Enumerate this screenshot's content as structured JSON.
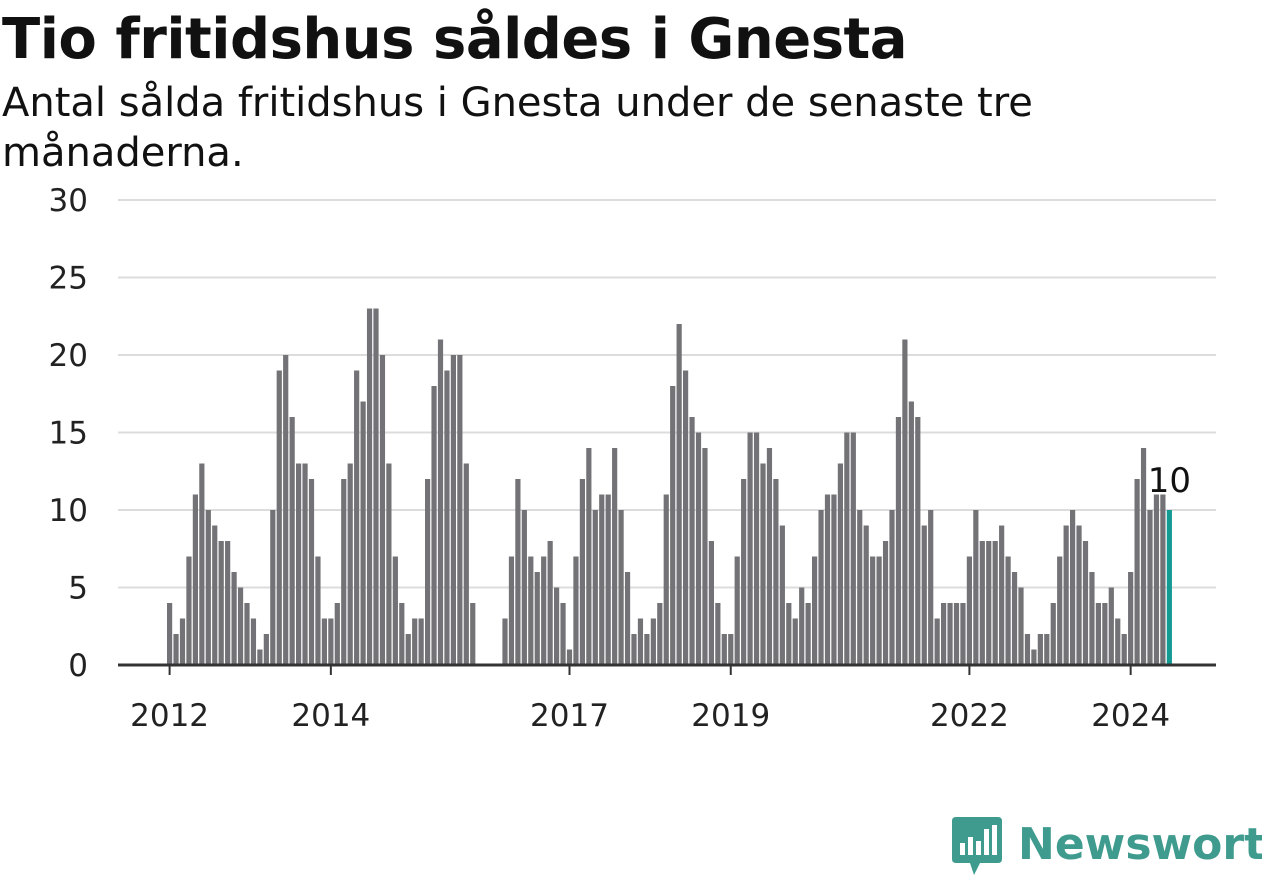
{
  "chart_data": {
    "type": "bar",
    "title": "Tio fritidshus såldes i Gnesta",
    "subtitle": "Antal sålda fritidshus i Gnesta under de senaste tre månaderna.",
    "xlabel": "",
    "ylabel": "",
    "ylim": [
      0,
      30
    ],
    "yticks": [
      0,
      5,
      10,
      15,
      20,
      25,
      30
    ],
    "xtick_labels": [
      {
        "label": "2012",
        "index": 0
      },
      {
        "label": "2014",
        "index": 25
      },
      {
        "label": "2017",
        "index": 62
      },
      {
        "label": "2019",
        "index": 87
      },
      {
        "label": "2022",
        "index": 124
      },
      {
        "label": "2024",
        "index": 149
      }
    ],
    "grid": true,
    "highlight_color": "#139b93",
    "bar_color": "#737276",
    "last_value_label": "10",
    "values": [
      4,
      2,
      3,
      7,
      11,
      13,
      10,
      9,
      8,
      8,
      6,
      5,
      4,
      3,
      1,
      2,
      10,
      19,
      20,
      16,
      13,
      13,
      12,
      7,
      3,
      3,
      4,
      12,
      13,
      19,
      17,
      23,
      23,
      20,
      13,
      7,
      4,
      2,
      3,
      3,
      12,
      18,
      21,
      19,
      20,
      20,
      13,
      4,
      0,
      0,
      0,
      0,
      3,
      7,
      12,
      10,
      7,
      6,
      7,
      8,
      5,
      4,
      1,
      7,
      12,
      14,
      10,
      11,
      11,
      14,
      10,
      6,
      2,
      3,
      2,
      3,
      4,
      11,
      18,
      22,
      19,
      16,
      15,
      14,
      8,
      4,
      2,
      2,
      7,
      12,
      15,
      15,
      13,
      14,
      12,
      9,
      4,
      3,
      5,
      4,
      7,
      10,
      11,
      11,
      13,
      15,
      15,
      10,
      9,
      7,
      7,
      8,
      10,
      16,
      21,
      17,
      16,
      9,
      10,
      3,
      4,
      4,
      4,
      4,
      7,
      10,
      8,
      8,
      8,
      9,
      7,
      6,
      5,
      2,
      1,
      2,
      2,
      4,
      7,
      9,
      10,
      9,
      8,
      6,
      4,
      4,
      5,
      3,
      2,
      6,
      12,
      14,
      10,
      11,
      11,
      10
    ]
  },
  "brand": {
    "name": "Newsworthy",
    "color": "#3f9b8e"
  }
}
